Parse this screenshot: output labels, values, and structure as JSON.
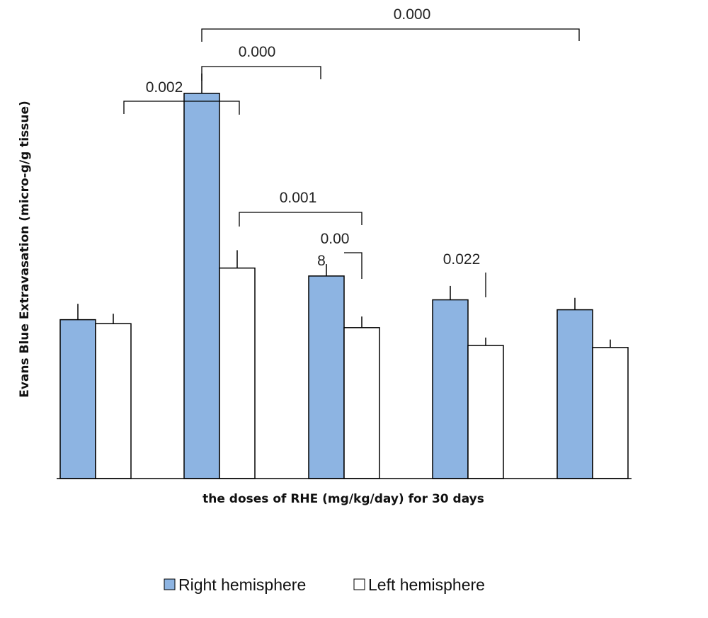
{
  "chart_data": {
    "type": "bar",
    "title": "",
    "xlabel": "the doses of RHE (mg/kg/day) for 30 days",
    "ylabel": "Evans Blue Extravasation (micro-g/g tissue)",
    "categories": [
      "",
      "",
      "",
      "",
      ""
    ],
    "ylim": [
      0,
      100
    ],
    "grid": false,
    "legend_position": "bottom",
    "colors": {
      "right": "#8DB4E2",
      "left": "#ffffff",
      "outline": "#000000"
    },
    "series": [
      {
        "name": "Right hemisphere",
        "values": [
          40,
          97,
          51,
          45,
          42.5
        ],
        "errors": [
          4,
          5,
          3,
          3.5,
          3
        ]
      },
      {
        "name": "Left hemisphere",
        "values": [
          39,
          53,
          38,
          33.5,
          33
        ],
        "errors": [
          2.5,
          4.5,
          2.8,
          2,
          2
        ]
      }
    ],
    "annotations": [
      {
        "label": "0.000"
      },
      {
        "label": "0.000"
      },
      {
        "label": "0.002"
      },
      {
        "label": "0.001"
      },
      {
        "label": "0.00"
      },
      {
        "label": "8"
      },
      {
        "label": "0.022"
      }
    ]
  }
}
